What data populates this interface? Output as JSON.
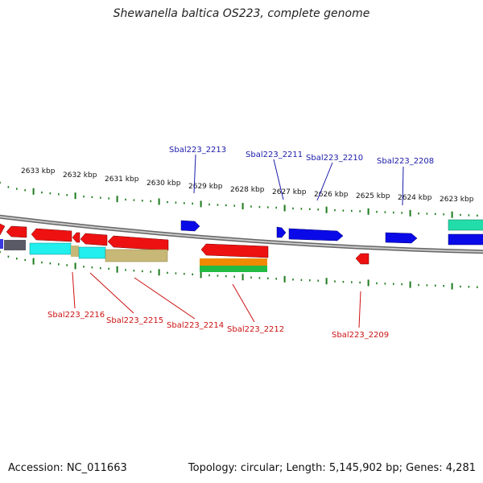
{
  "title": "Shewanella baltica OS223, complete genome",
  "footer": {
    "accession": "Accession: NC_011663",
    "summary": "Topology: circular; Length: 5,145,902 bp; Genes: 4,281"
  },
  "kbp_labels": [
    "2633 kbp",
    "2632 kbp",
    "2631 kbp",
    "2630 kbp",
    "2629 kbp",
    "2628 kbp",
    "2627 kbp",
    "2626 kbp",
    "2625 kbp",
    "2624 kbp",
    "2623 kbp"
  ],
  "gene_labels_top": [
    "Sbal223_2213",
    "Sbal223_2211",
    "Sbal223_2210",
    "Sbal223_2208"
  ],
  "gene_labels_bottom": [
    "Sbal223_2216",
    "Sbal223_2215",
    "Sbal223_2214",
    "Sbal223_2212",
    "Sbal223_2209"
  ],
  "colors": {
    "forward_gene": "#0a0ae8",
    "reverse_gene": "#ee1111",
    "label_top": "#1a1aaa",
    "label_bottom": "#cc1111",
    "tick": "#1a7a1a",
    "backbone": "#888888",
    "cyan_feature": "#22eeee",
    "tan_feature": "#c8b878",
    "orange_feature": "#f08a00",
    "green_feature": "#22bb44",
    "teal_feature": "#22ddaa"
  }
}
